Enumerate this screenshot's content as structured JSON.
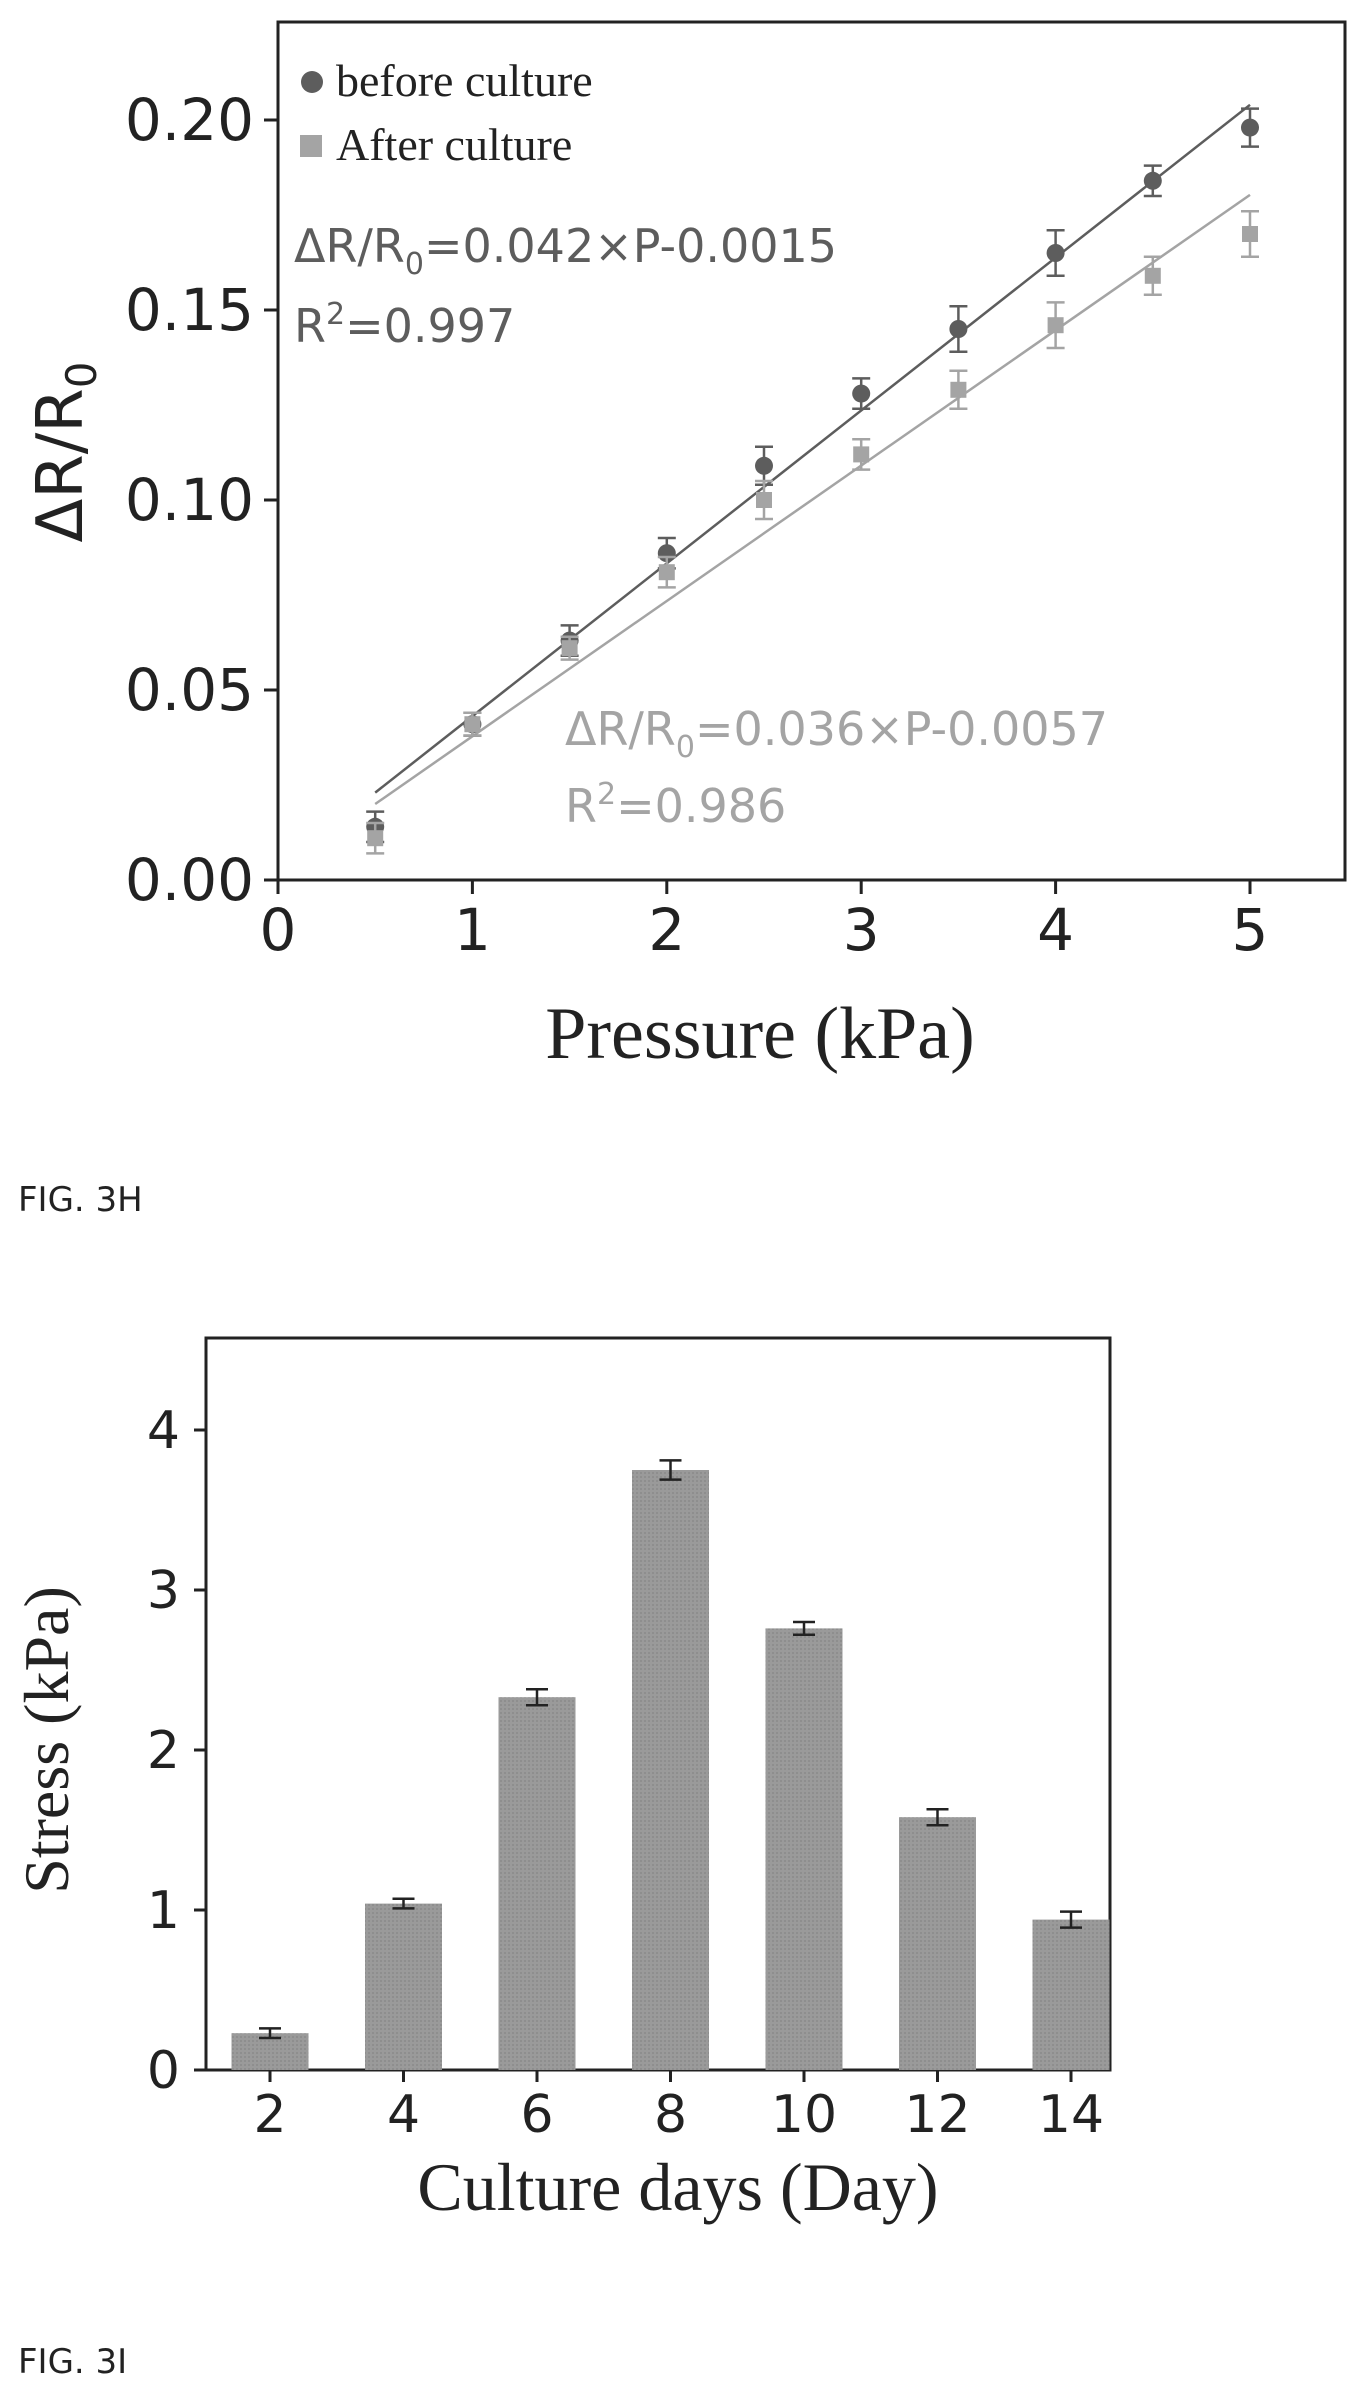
{
  "figures": [
    {
      "label": "FIG. 3H"
    },
    {
      "label": "FIG. 3I"
    }
  ],
  "colors": {
    "before": "#5d5d5d",
    "after": "#a4a4a4",
    "bar": "#9a9a9a",
    "axis": "#222222"
  },
  "chart_data": [
    {
      "type": "scatter",
      "xlabel": "Pressure (kPa)",
      "ylabel": "ΔR/R₀",
      "xlim": [
        0,
        5.5
      ],
      "ylim": [
        0,
        0.2
      ],
      "xticks": [
        "0",
        "1",
        "2",
        "3",
        "4",
        "5"
      ],
      "yticks": [
        "0.00",
        "0.05",
        "0.10",
        "0.15",
        "0.20"
      ],
      "legend_position": "top-left",
      "series": [
        {
          "name": "before culture",
          "marker": "circle",
          "x": [
            0.5,
            1.0,
            1.5,
            2.0,
            2.5,
            3.0,
            3.5,
            4.0,
            4.5,
            5.0
          ],
          "y": [
            0.014,
            0.041,
            0.063,
            0.086,
            0.109,
            0.128,
            0.145,
            0.165,
            0.184,
            0.198
          ],
          "err": [
            0.004,
            0.003,
            0.004,
            0.004,
            0.005,
            0.004,
            0.006,
            0.006,
            0.004,
            0.005
          ],
          "fit": {
            "slope": 0.042,
            "intercept": -0.0015
          },
          "equation_prefix": "ΔR/R",
          "equation_sub": "0",
          "equation_rest": "=0.042×P-0.0015",
          "r2_prefix": "R",
          "r2_sup": "2",
          "r2_rest": "=0.997"
        },
        {
          "name": "After culture",
          "marker": "square",
          "x": [
            0.5,
            1.0,
            1.5,
            2.0,
            2.5,
            3.0,
            3.5,
            4.0,
            4.5,
            5.0
          ],
          "y": [
            0.011,
            0.041,
            0.061,
            0.081,
            0.1,
            0.112,
            0.129,
            0.146,
            0.159,
            0.17
          ],
          "err": [
            0.004,
            0.003,
            0.003,
            0.004,
            0.005,
            0.004,
            0.005,
            0.006,
            0.005,
            0.006
          ],
          "fit": {
            "slope": 0.036,
            "intercept": -0.0057
          },
          "equation_prefix": "ΔR/R",
          "equation_sub": "0",
          "equation_rest": "=0.036×P-0.0057",
          "r2_prefix": "R",
          "r2_sup": "2",
          "r2_rest": "=0.986"
        }
      ]
    },
    {
      "type": "bar",
      "xlabel": "Culture days (Day)",
      "ylabel": "Stress (kPa)",
      "ylim": [
        0,
        4.5
      ],
      "yticks": [
        "0",
        "1",
        "2",
        "3",
        "4"
      ],
      "categories": [
        "2",
        "4",
        "6",
        "8",
        "10",
        "12",
        "14"
      ],
      "values": [
        0.23,
        1.04,
        2.33,
        3.75,
        2.76,
        1.58,
        0.94
      ],
      "err": [
        0.03,
        0.03,
        0.05,
        0.06,
        0.04,
        0.05,
        0.05
      ]
    }
  ]
}
